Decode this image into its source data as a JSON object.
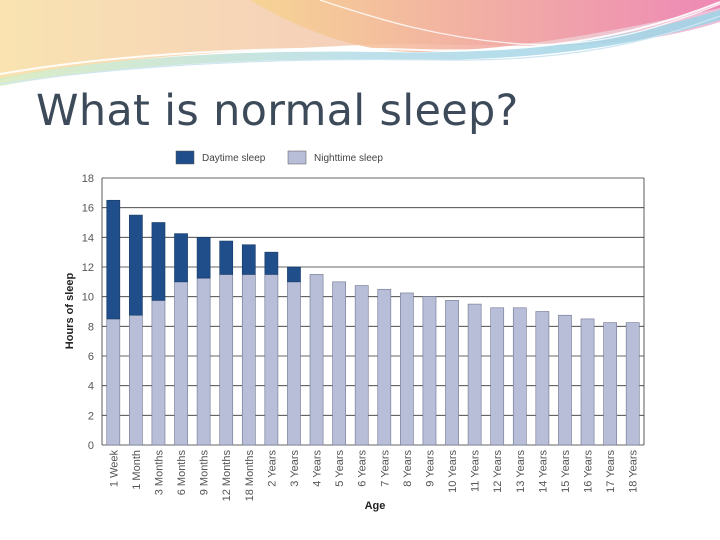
{
  "slide": {
    "title": "What is normal sleep?"
  },
  "colors": {
    "daytime": "#1f4e8a",
    "nighttime": "#b8bdd8",
    "title": "#3d4a5a"
  },
  "chart_data": {
    "type": "bar",
    "stacked": true,
    "categories": [
      "1 Week",
      "1 Month",
      "3 Months",
      "6 Months",
      "9 Months",
      "12 Months",
      "18 Months",
      "2 Years",
      "3 Years",
      "4 Years",
      "5 Years",
      "6 Years",
      "7 Years",
      "8 Years",
      "9 Years",
      "10 Years",
      "11 Years",
      "12 Years",
      "13 Years",
      "14 Years",
      "15 Years",
      "16 Years",
      "17 Years",
      "18 Years"
    ],
    "series": [
      {
        "name": "Nighttime sleep",
        "values": [
          8.5,
          8.75,
          9.75,
          11,
          11.25,
          11.5,
          11.5,
          11.5,
          11,
          11.5,
          11,
          10.75,
          10.5,
          10.25,
          10,
          9.75,
          9.5,
          9.25,
          9.25,
          9,
          8.75,
          8.5,
          8.25,
          8.25
        ]
      },
      {
        "name": "Daytime sleep",
        "values": [
          8,
          6.75,
          5.25,
          3.25,
          2.75,
          2.25,
          2,
          1.5,
          1,
          0,
          0,
          0,
          0,
          0,
          0,
          0,
          0,
          0,
          0,
          0,
          0,
          0,
          0,
          0
        ]
      }
    ],
    "xlabel": "Age",
    "ylabel": "Hours of sleep",
    "ylim": [
      0,
      18
    ],
    "yticks": [
      "0",
      "2",
      "4",
      "6",
      "8",
      "10",
      "12",
      "14",
      "16",
      "18"
    ],
    "legend": [
      "Daytime sleep",
      "Nighttime sleep"
    ],
    "grid": true
  }
}
